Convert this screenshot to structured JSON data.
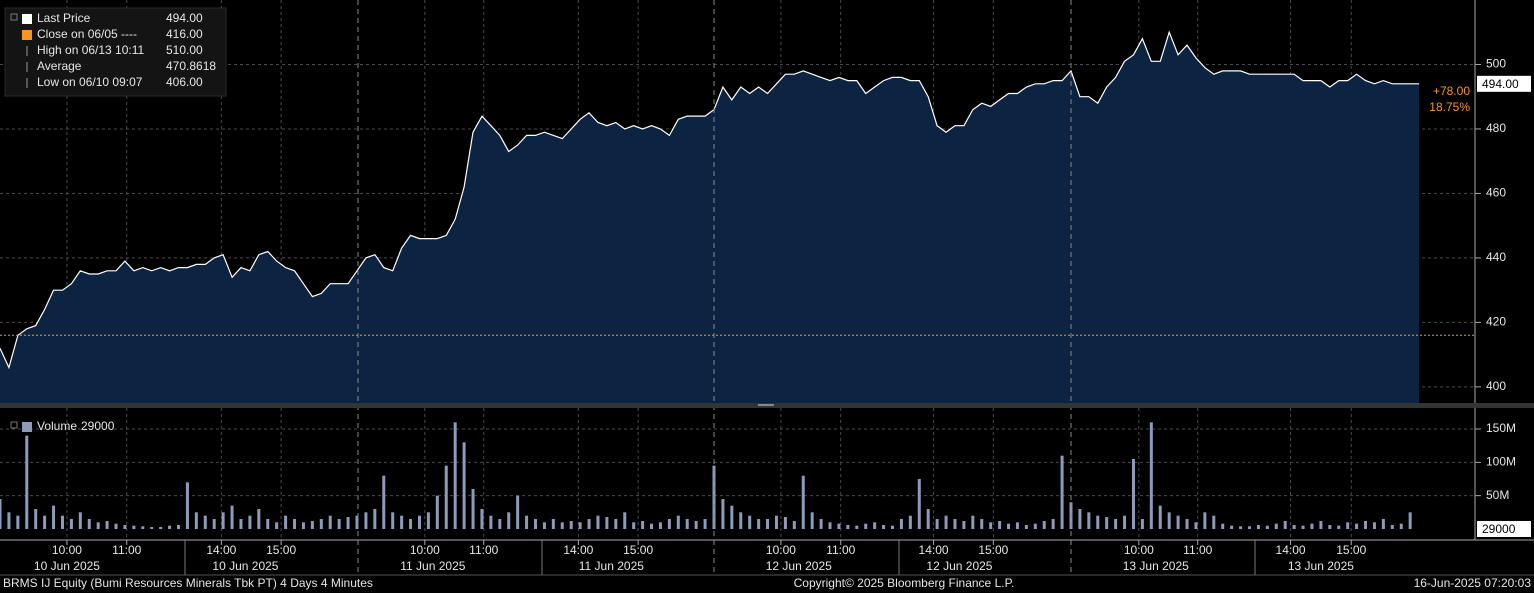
{
  "chart_data": {
    "type": "line",
    "title": "BRMS IJ Equity (Bumi Resources Minerals Tbk PT) 4 Days 4 Minutes",
    "copyright": "Copyright© 2025 Bloomberg Finance L.P.",
    "timestamp": "16-Jun-2025 07:20:03",
    "x": [
      0,
      1,
      2,
      3,
      4,
      5,
      6,
      7,
      8,
      9,
      10,
      11,
      12,
      13,
      14,
      15,
      16,
      17,
      18,
      19,
      20,
      21,
      22,
      23,
      24,
      25,
      26,
      27,
      28,
      29,
      30,
      31,
      32,
      33,
      34,
      35,
      36,
      37,
      38,
      39,
      40,
      41,
      42,
      43,
      44,
      45,
      46,
      47,
      48,
      49,
      50,
      51,
      52,
      53,
      54,
      55,
      56,
      57,
      58,
      59,
      60,
      61,
      62,
      63,
      64,
      65,
      66,
      67,
      68,
      69,
      70,
      71,
      72,
      73,
      74,
      75,
      76,
      77,
      78,
      79,
      80,
      81,
      82,
      83,
      84,
      85,
      86,
      87,
      88,
      89,
      90,
      91,
      92,
      93,
      94,
      95,
      96,
      97,
      98,
      99,
      100,
      101,
      102,
      103,
      104,
      105,
      106,
      107,
      108,
      109,
      110,
      111,
      112,
      113,
      114,
      115,
      116,
      117,
      118,
      119,
      120,
      121,
      122,
      123,
      124,
      125,
      126,
      127,
      128,
      129,
      130,
      131,
      132,
      133,
      134,
      135,
      136,
      137,
      138,
      139,
      140,
      141,
      142,
      143,
      144,
      145,
      146,
      147,
      148,
      149,
      150,
      151,
      152,
      153,
      154,
      155,
      156,
      157,
      158,
      159
    ],
    "series": [
      {
        "name": "Last Price",
        "color": "#ffffff",
        "fill": "#0c2442",
        "values": [
          412,
          406,
          416,
          418,
          419,
          424,
          430,
          430,
          432,
          436,
          435,
          435,
          436,
          436,
          439,
          436,
          437,
          436,
          437,
          436,
          437,
          437,
          438,
          438,
          440,
          441,
          434,
          437,
          436,
          441,
          442,
          439,
          437,
          436,
          432,
          428,
          429,
          432,
          432,
          432,
          436,
          440,
          441,
          437,
          436,
          443,
          447,
          446,
          446,
          446,
          447,
          452,
          462,
          479,
          484,
          481,
          478,
          473,
          475,
          478,
          478,
          479,
          478,
          477,
          480,
          483,
          485,
          482,
          481,
          482,
          480,
          481,
          480,
          481,
          480,
          478,
          483,
          484,
          484,
          484,
          486,
          493,
          489,
          493,
          491,
          493,
          491,
          494,
          497,
          497,
          498,
          497,
          496,
          495,
          496,
          495,
          495,
          491,
          493,
          495,
          496,
          496,
          495,
          495,
          490,
          481,
          479,
          481,
          481,
          486,
          488,
          487,
          489,
          491,
          491,
          493,
          494,
          494,
          495,
          495,
          498,
          490,
          490,
          488,
          493,
          496,
          501,
          503,
          508,
          501,
          501,
          510,
          503,
          506,
          502,
          499,
          497,
          498,
          498,
          498,
          497,
          497,
          497,
          497,
          497,
          497,
          495,
          495,
          495,
          493,
          495,
          495,
          497,
          495,
          494,
          495,
          494,
          494,
          494,
          494
        ]
      }
    ],
    "xlim": [
      0,
      160
    ],
    "ylim": [
      395,
      520
    ],
    "yticks": [
      400,
      420,
      440,
      460,
      480,
      500
    ],
    "grid": true,
    "xticks": [
      {
        "value": 7.5,
        "label": "10:00"
      },
      {
        "value": 14.2,
        "label": "11:00"
      },
      {
        "value": 24.8,
        "label": "14:00"
      },
      {
        "value": 31.5,
        "label": "15:00"
      },
      {
        "value": 47.6,
        "label": "10:00"
      },
      {
        "value": 54.2,
        "label": "11:00"
      },
      {
        "value": 64.8,
        "label": "14:00"
      },
      {
        "value": 71.5,
        "label": "15:00"
      },
      {
        "value": 87.5,
        "label": "10:00"
      },
      {
        "value": 94.2,
        "label": "11:00"
      },
      {
        "value": 104.6,
        "label": "14:00"
      },
      {
        "value": 111.3,
        "label": "15:00"
      },
      {
        "value": 127.6,
        "label": "10:00"
      },
      {
        "value": 134.2,
        "label": "11:00"
      },
      {
        "value": 144.6,
        "label": "14:00"
      },
      {
        "value": 151.4,
        "label": "15:00"
      }
    ],
    "date_labels": [
      {
        "value": 7.5,
        "label": "10 Jun 2025"
      },
      {
        "value": 27.5,
        "label": "10 Jun 2025"
      },
      {
        "value": 48.5,
        "label": "11 Jun 2025"
      },
      {
        "value": 68.5,
        "label": "11 Jun 2025"
      },
      {
        "value": 89.5,
        "label": "12 Jun 2025"
      },
      {
        "value": 107.5,
        "label": "12 Jun 2025"
      },
      {
        "value": 129.5,
        "label": "13 Jun 2025"
      },
      {
        "value": 148,
        "label": "13 Jun 2025"
      }
    ],
    "reference": {
      "value": 416,
      "color": "#f7941d"
    },
    "legend": [
      {
        "name": "Last Price",
        "value": 494,
        "value_label": "494.00",
        "color": "#ffffff"
      },
      {
        "name": "Close on 06/05 ----",
        "value": 416,
        "value_label": "416.00",
        "color": "#f7941d"
      },
      {
        "name": "High on 06/13 10:11",
        "value": 510,
        "value_label": "510.00"
      },
      {
        "name": "Average",
        "value": 470.8618
      },
      {
        "name": "Low on 06/10 09:07",
        "value": 406,
        "value_label": "406.00"
      }
    ],
    "last_tag": {
      "value": 494,
      "label": "494.00"
    },
    "change": {
      "value": 78,
      "label": "+78.00"
    },
    "change_pct": {
      "value": 18.75,
      "label": "18.75%"
    },
    "change_color": "#f7941d",
    "volume": {
      "name": "Volume",
      "last": 29000,
      "color": "#8d9bba",
      "ylim": [
        0,
        181500000
      ],
      "yticks": [
        {
          "value": 50000000,
          "label": "50M"
        },
        {
          "value": 100000000,
          "label": "100M"
        },
        {
          "value": 150000000,
          "label": "150M"
        }
      ],
      "values": [
        45000000,
        25000000,
        20000000,
        140000000,
        30000000,
        20000000,
        35000000,
        20000000,
        15000000,
        25000000,
        15000000,
        10000000,
        12000000,
        8000000,
        6000000,
        5000000,
        4000000,
        3000000,
        3000000,
        5000000,
        6000000,
        70000000,
        25000000,
        20000000,
        15000000,
        25000000,
        35000000,
        15000000,
        20000000,
        30000000,
        15000000,
        10000000,
        20000000,
        15000000,
        10000000,
        12000000,
        15000000,
        20000000,
        15000000,
        18000000,
        20000000,
        25000000,
        30000000,
        80000000,
        25000000,
        20000000,
        15000000,
        20000000,
        25000000,
        50000000,
        95000000,
        160000000,
        130000000,
        60000000,
        30000000,
        20000000,
        15000000,
        25000000,
        50000000,
        20000000,
        15000000,
        10000000,
        15000000,
        10000000,
        12000000,
        10000000,
        15000000,
        20000000,
        18000000,
        15000000,
        25000000,
        10000000,
        12000000,
        8000000,
        10000000,
        15000000,
        20000000,
        15000000,
        12000000,
        15000000,
        95000000,
        45000000,
        35000000,
        25000000,
        20000000,
        15000000,
        15000000,
        20000000,
        18000000,
        12000000,
        80000000,
        25000000,
        15000000,
        10000000,
        8000000,
        6000000,
        5000000,
        8000000,
        10000000,
        6000000,
        5000000,
        15000000,
        20000000,
        75000000,
        30000000,
        15000000,
        20000000,
        15000000,
        12000000,
        20000000,
        15000000,
        10000000,
        12000000,
        8000000,
        10000000,
        6000000,
        8000000,
        12000000,
        15000000,
        110000000,
        40000000,
        30000000,
        25000000,
        20000000,
        18000000,
        15000000,
        20000000,
        105000000,
        15000000,
        160000000,
        35000000,
        25000000,
        20000000,
        15000000,
        10000000,
        25000000,
        20000000,
        8000000,
        5000000,
        4000000,
        4000000,
        6000000,
        5000000,
        8000000,
        12000000,
        6000000,
        5000000,
        8000000,
        12000000,
        6000000,
        5000000,
        10000000,
        8000000,
        12000000,
        10000000,
        15000000,
        6000000,
        8000000,
        25000000,
        29000
      ]
    }
  }
}
